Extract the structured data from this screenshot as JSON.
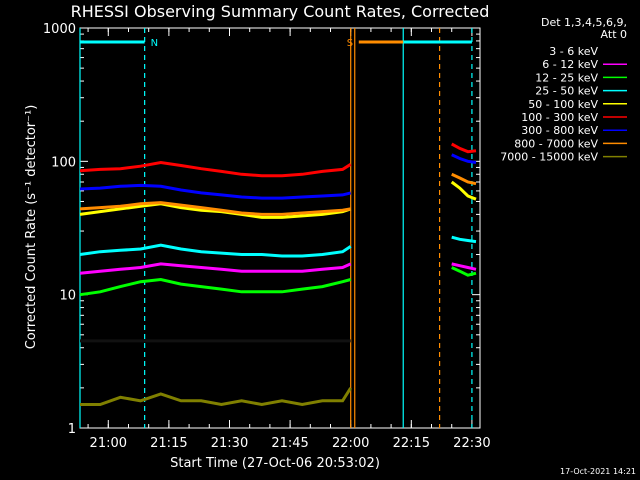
{
  "chart_data": {
    "type": "line",
    "title": "RHESSI Observing Summary Count Rates, Corrected",
    "xlabel": "Start Time (27-Oct-06 20:53:02)",
    "ylabel": "Corrected Count Rate (s⁻¹ detector⁻¹)",
    "ylog": true,
    "ylim": [
      1,
      1000
    ],
    "xlim": [
      "20:53",
      "22:32"
    ],
    "x_ticks": [
      "21:00",
      "21:15",
      "21:30",
      "21:45",
      "22:00",
      "22:15",
      "22:30"
    ],
    "y_ticks": [
      "1",
      "10",
      "100",
      "1000"
    ],
    "legend": {
      "title_line1": "Det 1,3,4,5,6,9,",
      "title_line2": "Att 0",
      "placement": "right"
    },
    "x_sample": [
      "20:53",
      "20:58",
      "21:03",
      "21:08",
      "21:13",
      "21:18",
      "21:23",
      "21:28",
      "21:33",
      "21:38",
      "21:43",
      "21:48",
      "21:53",
      "21:58",
      "22:00"
    ],
    "x_sample_2": [
      "22:25",
      "22:27",
      "22:29",
      "22:31"
    ],
    "series": [
      {
        "name": "3 - 6 keV",
        "color": "#000000",
        "values": [
          4.5,
          4.5,
          4.5,
          4.5,
          4.5,
          4.5,
          4.5,
          4.5,
          4.5,
          4.5,
          4.5,
          4.5,
          4.5,
          4.5,
          4.5
        ],
        "values_2": []
      },
      {
        "name": "6 - 12 keV",
        "color": "#ff00ff",
        "values": [
          14.5,
          15.0,
          15.5,
          16.0,
          17.0,
          16.5,
          16.0,
          15.5,
          15.0,
          15.0,
          15.0,
          15.0,
          15.5,
          16.0,
          17.0
        ],
        "values_2": [
          17.0,
          16.5,
          16.0,
          15.5
        ]
      },
      {
        "name": "12 - 25 keV",
        "color": "#00ff00",
        "values": [
          10.0,
          10.5,
          11.5,
          12.5,
          13.0,
          12.0,
          11.5,
          11.0,
          10.5,
          10.5,
          10.5,
          11.0,
          11.5,
          12.5,
          13.0
        ],
        "values_2": [
          16.0,
          15.0,
          14.0,
          14.5
        ]
      },
      {
        "name": "25 - 50 keV",
        "color": "#00ffff",
        "values": [
          20.0,
          21.0,
          21.5,
          22.0,
          23.5,
          22.0,
          21.0,
          20.5,
          20.0,
          20.0,
          19.5,
          19.5,
          20.0,
          21.0,
          23.0
        ],
        "values_2": [
          27.0,
          26.0,
          25.5,
          25.0
        ]
      },
      {
        "name": "50 - 100 keV",
        "color": "#ffff00",
        "values": [
          40.0,
          42.0,
          44.0,
          46.0,
          48.0,
          45.0,
          43.0,
          42.0,
          40.0,
          38.0,
          38.0,
          39.0,
          40.0,
          42.0,
          44.0
        ],
        "values_2": [
          70.0,
          63.0,
          55.0,
          52.0
        ]
      },
      {
        "name": "100 - 300 keV",
        "color": "#ff0000",
        "values": [
          85.0,
          87.0,
          88.0,
          92.0,
          98.0,
          93.0,
          88.0,
          84.0,
          80.0,
          78.0,
          78.0,
          80.0,
          84.0,
          87.0,
          95.0
        ],
        "values_2": [
          135.0,
          125.0,
          118.0,
          120.0
        ]
      },
      {
        "name": "300 - 800 keV",
        "color": "#0000ff",
        "values": [
          62.0,
          63.0,
          65.0,
          66.0,
          65.0,
          61.0,
          58.0,
          56.0,
          54.0,
          53.0,
          53.0,
          54.0,
          55.0,
          56.0,
          58.0
        ],
        "values_2": [
          112.0,
          105.0,
          100.0,
          98.0
        ]
      },
      {
        "name": "800 - 7000 keV",
        "color": "#ff8c00",
        "values": [
          44.0,
          45.0,
          46.0,
          48.0,
          49.0,
          47.0,
          45.0,
          43.0,
          41.0,
          40.0,
          40.0,
          41.0,
          42.0,
          43.0,
          44.0
        ],
        "values_2": [
          80.0,
          75.0,
          70.0,
          68.0
        ]
      },
      {
        "name": "7000 - 15000 keV",
        "color": "#808000",
        "values": [
          1.5,
          1.5,
          1.7,
          1.6,
          1.8,
          1.6,
          1.6,
          1.5,
          1.6,
          1.5,
          1.6,
          1.5,
          1.6,
          1.6,
          2.0
        ],
        "values_2": []
      }
    ],
    "shading_bars": [
      {
        "label": "N",
        "start": "20:53",
        "end": "21:09",
        "color": "#00ffff"
      },
      {
        "label": "S",
        "start": "22:02",
        "end": "22:22",
        "color": "#ff8c00"
      },
      {
        "label": "",
        "start": "22:13",
        "end": "22:30",
        "color": "#00ffff"
      }
    ],
    "vlines": [
      {
        "x": "20:53",
        "color": "#00ffff",
        "style": "solid"
      },
      {
        "x": "21:09",
        "color": "#00ffff",
        "style": "dashed"
      },
      {
        "x": "22:00",
        "color": "#ff8c00",
        "style": "solid"
      },
      {
        "x": "22:01",
        "color": "#ff8c00",
        "style": "solid"
      },
      {
        "x": "22:13",
        "color": "#00ffff",
        "style": "solid"
      },
      {
        "x": "22:22",
        "color": "#ff8c00",
        "style": "dashed"
      },
      {
        "x": "22:30",
        "color": "#00ffff",
        "style": "dashed"
      }
    ]
  },
  "footer": {
    "date_stamp": "17-Oct-2021 14:21"
  }
}
